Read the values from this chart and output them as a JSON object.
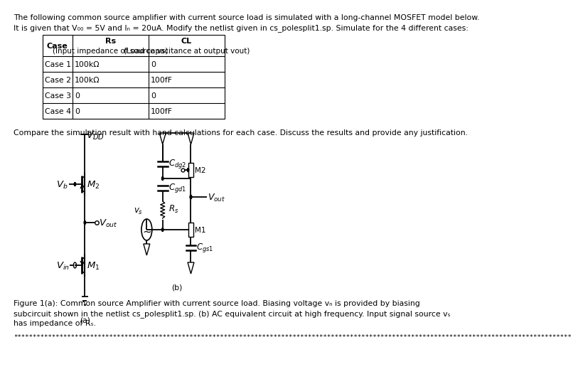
{
  "bg_color": "#ffffff",
  "text_color": "#000000",
  "title_line1": "The following common source amplifier with current source load is simulated with a long-channel MOSFET model below.",
  "title_line2": "It is given that V₀₀ = 5V and Iₙ = 20uA. Modify the netlist given in cs_polesplit1.sp. Simulate for the 4 different cases:",
  "table_col0_header": "Case",
  "table_col1_header1": "Rs",
  "table_col1_header2": "(Input impedance of source vs)",
  "table_col2_header1": "CL",
  "table_col2_header2": "(Load capacitance at output vout)",
  "table_rows": [
    [
      "Case 1",
      "100kΩ",
      "0"
    ],
    [
      "Case 2",
      "100kΩ",
      "100fF"
    ],
    [
      "Case 3",
      "0",
      "0"
    ],
    [
      "Case 4",
      "0",
      "100fF"
    ]
  ],
  "compare_text": "Compare the simulation result with hand calculations for each case. Discuss the results and provide any justification.",
  "label_a": "(a)",
  "label_b": "(b)",
  "caption_line1": "Figure 1(a): Common source Amplifier with current source load. Biasing voltage vₙ is provided by biasing",
  "caption_line2": "subcircuit shown in the netlist cs_polesplit1.sp. (b) AC equivalent circuit at high frequency. Input signal source vₛ",
  "caption_line3": "has impedance of Rₛ.",
  "dots": "**************************************************************************************************************************************************",
  "font_body": 7.8,
  "font_header_bold": 8.0,
  "font_circuit": 8.5,
  "font_caption": 7.8
}
